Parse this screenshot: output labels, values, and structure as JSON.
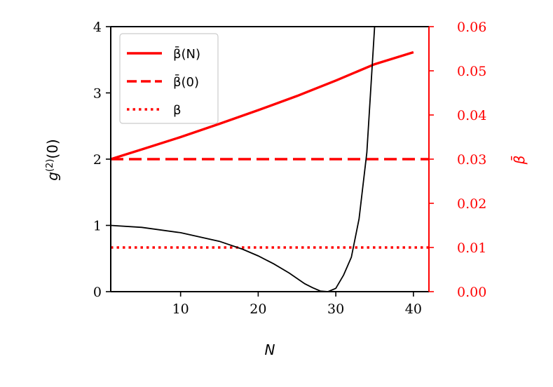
{
  "chart_data": {
    "type": "line",
    "xlabel": "N",
    "ylabel_left": "g^(2)(0)",
    "ylabel_right": "β̄",
    "xlim": [
      1,
      42
    ],
    "ylim_left": [
      0,
      4
    ],
    "ylim_right": [
      0,
      0.06
    ],
    "xticks": [
      10,
      20,
      30,
      40
    ],
    "xtick_labels": [
      "10",
      "20",
      "30",
      "40"
    ],
    "yticks_left": [
      0,
      1,
      2,
      3,
      4
    ],
    "ytick_labels_left": [
      "0",
      "1",
      "2",
      "3",
      "4"
    ],
    "yticks_right": [
      0,
      0.01,
      0.02,
      0.03,
      0.04,
      0.05,
      0.06
    ],
    "ytick_labels_right": [
      "0.00",
      "0.01",
      "0.02",
      "0.03",
      "0.04",
      "0.05",
      "0.06"
    ],
    "legend_position": "top-left",
    "grid": false,
    "colors": {
      "accent": "#ff0000",
      "primary": "#000000"
    },
    "series": [
      {
        "name": "β̄(N)",
        "axis": "right",
        "style": "solid",
        "color": "#ff0000",
        "x": [
          1,
          5,
          10,
          15,
          20,
          25,
          30,
          35,
          40
        ],
        "y": [
          0.03,
          0.0322,
          0.035,
          0.038,
          0.0411,
          0.0443,
          0.0478,
          0.0515,
          0.0542
        ]
      },
      {
        "name": "β̄(0)",
        "axis": "right",
        "style": "dashed",
        "color": "#ff0000",
        "x": [
          1,
          42
        ],
        "y": [
          0.03,
          0.03
        ]
      },
      {
        "name": "β",
        "axis": "right",
        "style": "dotted",
        "color": "#ff0000",
        "x": [
          1,
          42
        ],
        "y": [
          0.01,
          0.01
        ]
      },
      {
        "name": "",
        "axis": "left",
        "style": "solid",
        "color": "#000000",
        "x": [
          1,
          5,
          10,
          15,
          18,
          20,
          22,
          24,
          26,
          27,
          28,
          29,
          30,
          31,
          32,
          33,
          34,
          35
        ],
        "y": [
          1.0,
          0.97,
          0.89,
          0.76,
          0.64,
          0.54,
          0.42,
          0.28,
          0.12,
          0.06,
          0.01,
          0.0,
          0.05,
          0.25,
          0.52,
          1.1,
          2.1,
          4.0
        ]
      }
    ]
  }
}
